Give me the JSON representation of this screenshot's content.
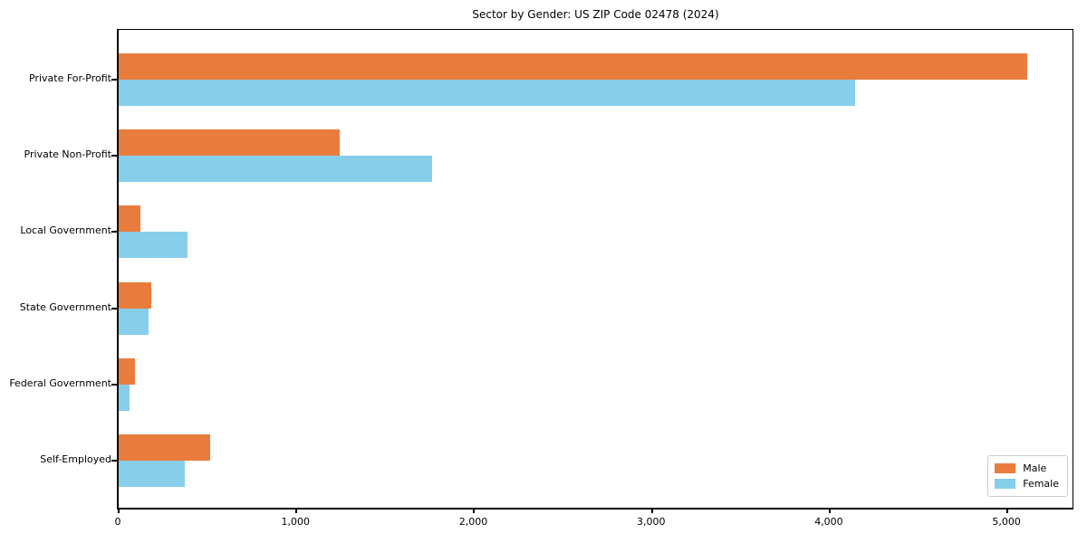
{
  "title": "Sector by Gender: US ZIP Code 02478 (2024)",
  "colors": {
    "male": "#e97c3d",
    "female": "#87ceeb",
    "axis": "#000000",
    "legend_border": "#cccccc",
    "background": "#ffffff"
  },
  "legend": {
    "position": "lower right",
    "items": [
      {
        "label": "Male",
        "color": "#e97c3d"
      },
      {
        "label": "Female",
        "color": "#87ceeb"
      }
    ]
  },
  "chart_data": {
    "type": "bar",
    "orientation": "horizontal",
    "title": "Sector by Gender: US ZIP Code 02478 (2024)",
    "xlabel": "",
    "ylabel": "",
    "grid": false,
    "legend_position": "lower right",
    "categories": [
      "Private For-Profit",
      "Private Non-Profit",
      "Local Government",
      "State Government",
      "Federal Government",
      "Self-Employed"
    ],
    "series": [
      {
        "name": "Male",
        "color": "#e97c3d",
        "values": [
          5110,
          1245,
          120,
          185,
          90,
          515
        ]
      },
      {
        "name": "Female",
        "color": "#87ceeb",
        "values": [
          4145,
          1765,
          385,
          170,
          60,
          370
        ]
      }
    ],
    "xlim": [
      0,
      5366
    ],
    "xticks": [
      0,
      1000,
      2000,
      3000,
      4000,
      5000
    ],
    "xtick_labels": [
      "0",
      "1,000",
      "2,000",
      "3,000",
      "4,000",
      "5,000"
    ]
  }
}
